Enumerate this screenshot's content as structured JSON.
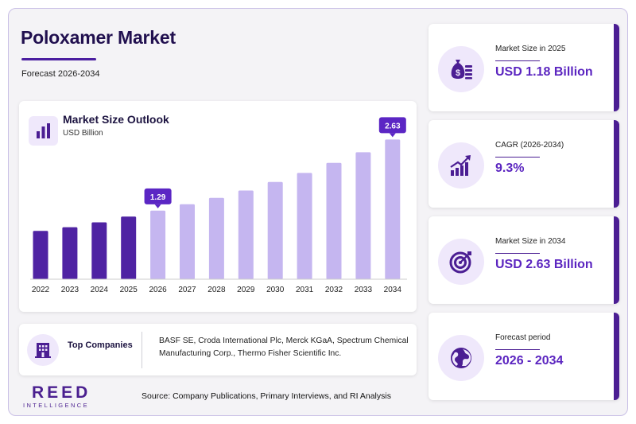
{
  "header": {
    "title": "Poloxamer Market",
    "subtitle": "Forecast 2026-2034"
  },
  "chart_card": {
    "title": "Market Size Outlook",
    "unit": "USD Billion",
    "icon": "bar-chart-icon"
  },
  "chart_data": {
    "type": "bar",
    "categories": [
      "2022",
      "2023",
      "2024",
      "2025",
      "2026",
      "2027",
      "2028",
      "2029",
      "2030",
      "2031",
      "2032",
      "2033",
      "2034"
    ],
    "values": [
      0.91,
      0.98,
      1.07,
      1.18,
      1.29,
      1.41,
      1.53,
      1.67,
      1.83,
      2.0,
      2.19,
      2.39,
      2.63
    ],
    "ylim": [
      0,
      2.8
    ],
    "forecast_start_index": 4,
    "annotations": [
      {
        "category": "2026",
        "label": "1.29"
      },
      {
        "category": "2034",
        "label": "2.63"
      }
    ],
    "colors": {
      "historical": "#4f23a3",
      "forecast": "#c5b6f0",
      "callout": "#5b26c4"
    },
    "grid": false,
    "legend": "none"
  },
  "companies": {
    "label": "Top Companies",
    "icon": "building-icon",
    "list": "BASF SE, Croda International Plc, Merck KGaA, Spectrum Chemical Manufacturing Corp., Thermo Fisher Scientific Inc."
  },
  "footer": {
    "logo_main": "REED",
    "logo_sub": "INTELLIGENCE",
    "source": "Source: Company Publications, Primary Interviews, and RI Analysis"
  },
  "kpis": [
    {
      "label": "Market Size in 2025",
      "value": "USD 1.18 Billion",
      "icon": "money-bag-icon"
    },
    {
      "label": "CAGR (2026-2034)",
      "value": "9.3%",
      "icon": "growth-chart-icon"
    },
    {
      "label": "Market Size in 2034",
      "value": "USD 2.63 Billion",
      "icon": "target-icon"
    },
    {
      "label": "Forecast period",
      "value": "2026 - 2034",
      "icon": "globe-icon"
    }
  ],
  "colors": {
    "accent": "#4b1e93",
    "value_text": "#5b25c0",
    "title": "#21104f"
  }
}
